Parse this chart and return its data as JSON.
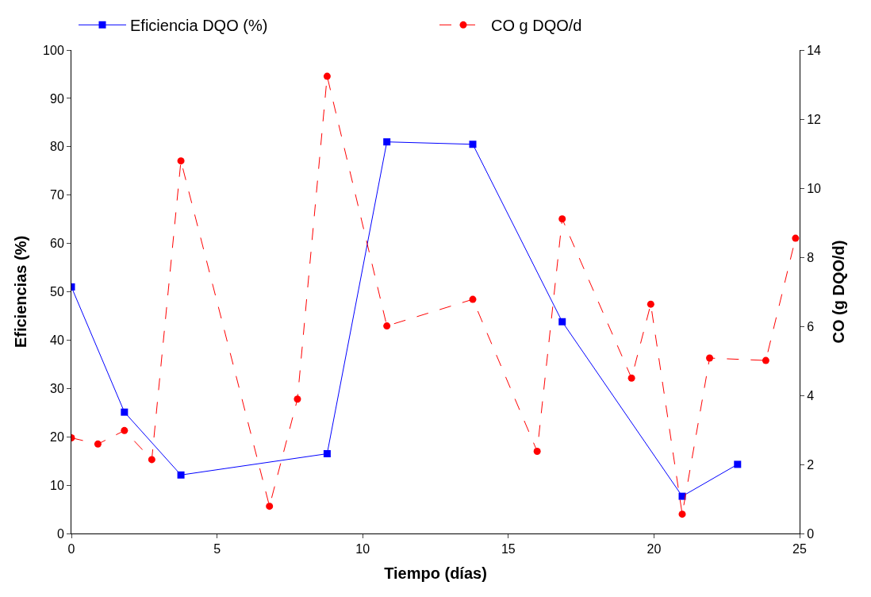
{
  "chart_data": {
    "type": "line",
    "xlabel": "Tiempo (días)",
    "ylabel": "Eficiencias (%)",
    "y2label": "CO (g DQO/d)",
    "xlim": [
      0,
      25
    ],
    "xticks": [
      0,
      5,
      10,
      15,
      20,
      25
    ],
    "ylim": [
      0,
      100
    ],
    "yticks": [
      0,
      10,
      20,
      30,
      40,
      50,
      60,
      70,
      80,
      90,
      100
    ],
    "y2lim": [
      0,
      14
    ],
    "y2ticks": [
      0,
      2,
      4,
      6,
      8,
      10,
      12,
      14
    ],
    "legend": "top",
    "series": [
      {
        "name": "Eficiencia DQO (%)",
        "color": "#0000ff",
        "marker": "square",
        "line_style": "solid",
        "x": [
          0,
          1.82,
          3.76,
          8.78,
          10.83,
          13.78,
          16.85,
          20.97,
          22.87
        ],
        "values": [
          51,
          25.1,
          12.1,
          16.5,
          81,
          80.5,
          43.8,
          7.7,
          14.3
        ]
      },
      {
        "name": "CO g DQO/d",
        "color": "#ff0000",
        "marker": "circle",
        "line_style": "dashed",
        "axis": "y2",
        "x": [
          0,
          0.91,
          1.82,
          2.76,
          3.76,
          6.8,
          7.76,
          8.78,
          10.83,
          13.78,
          15.99,
          16.85,
          19.23,
          19.89,
          20.97,
          21.91,
          23.84,
          24.86
        ],
        "values": [
          2.77,
          2.59,
          2.98,
          2.14,
          10.79,
          0.79,
          3.89,
          13.24,
          6.01,
          6.78,
          2.38,
          9.11,
          4.5,
          6.64,
          0.56,
          5.08,
          5.01,
          8.55
        ]
      }
    ]
  }
}
